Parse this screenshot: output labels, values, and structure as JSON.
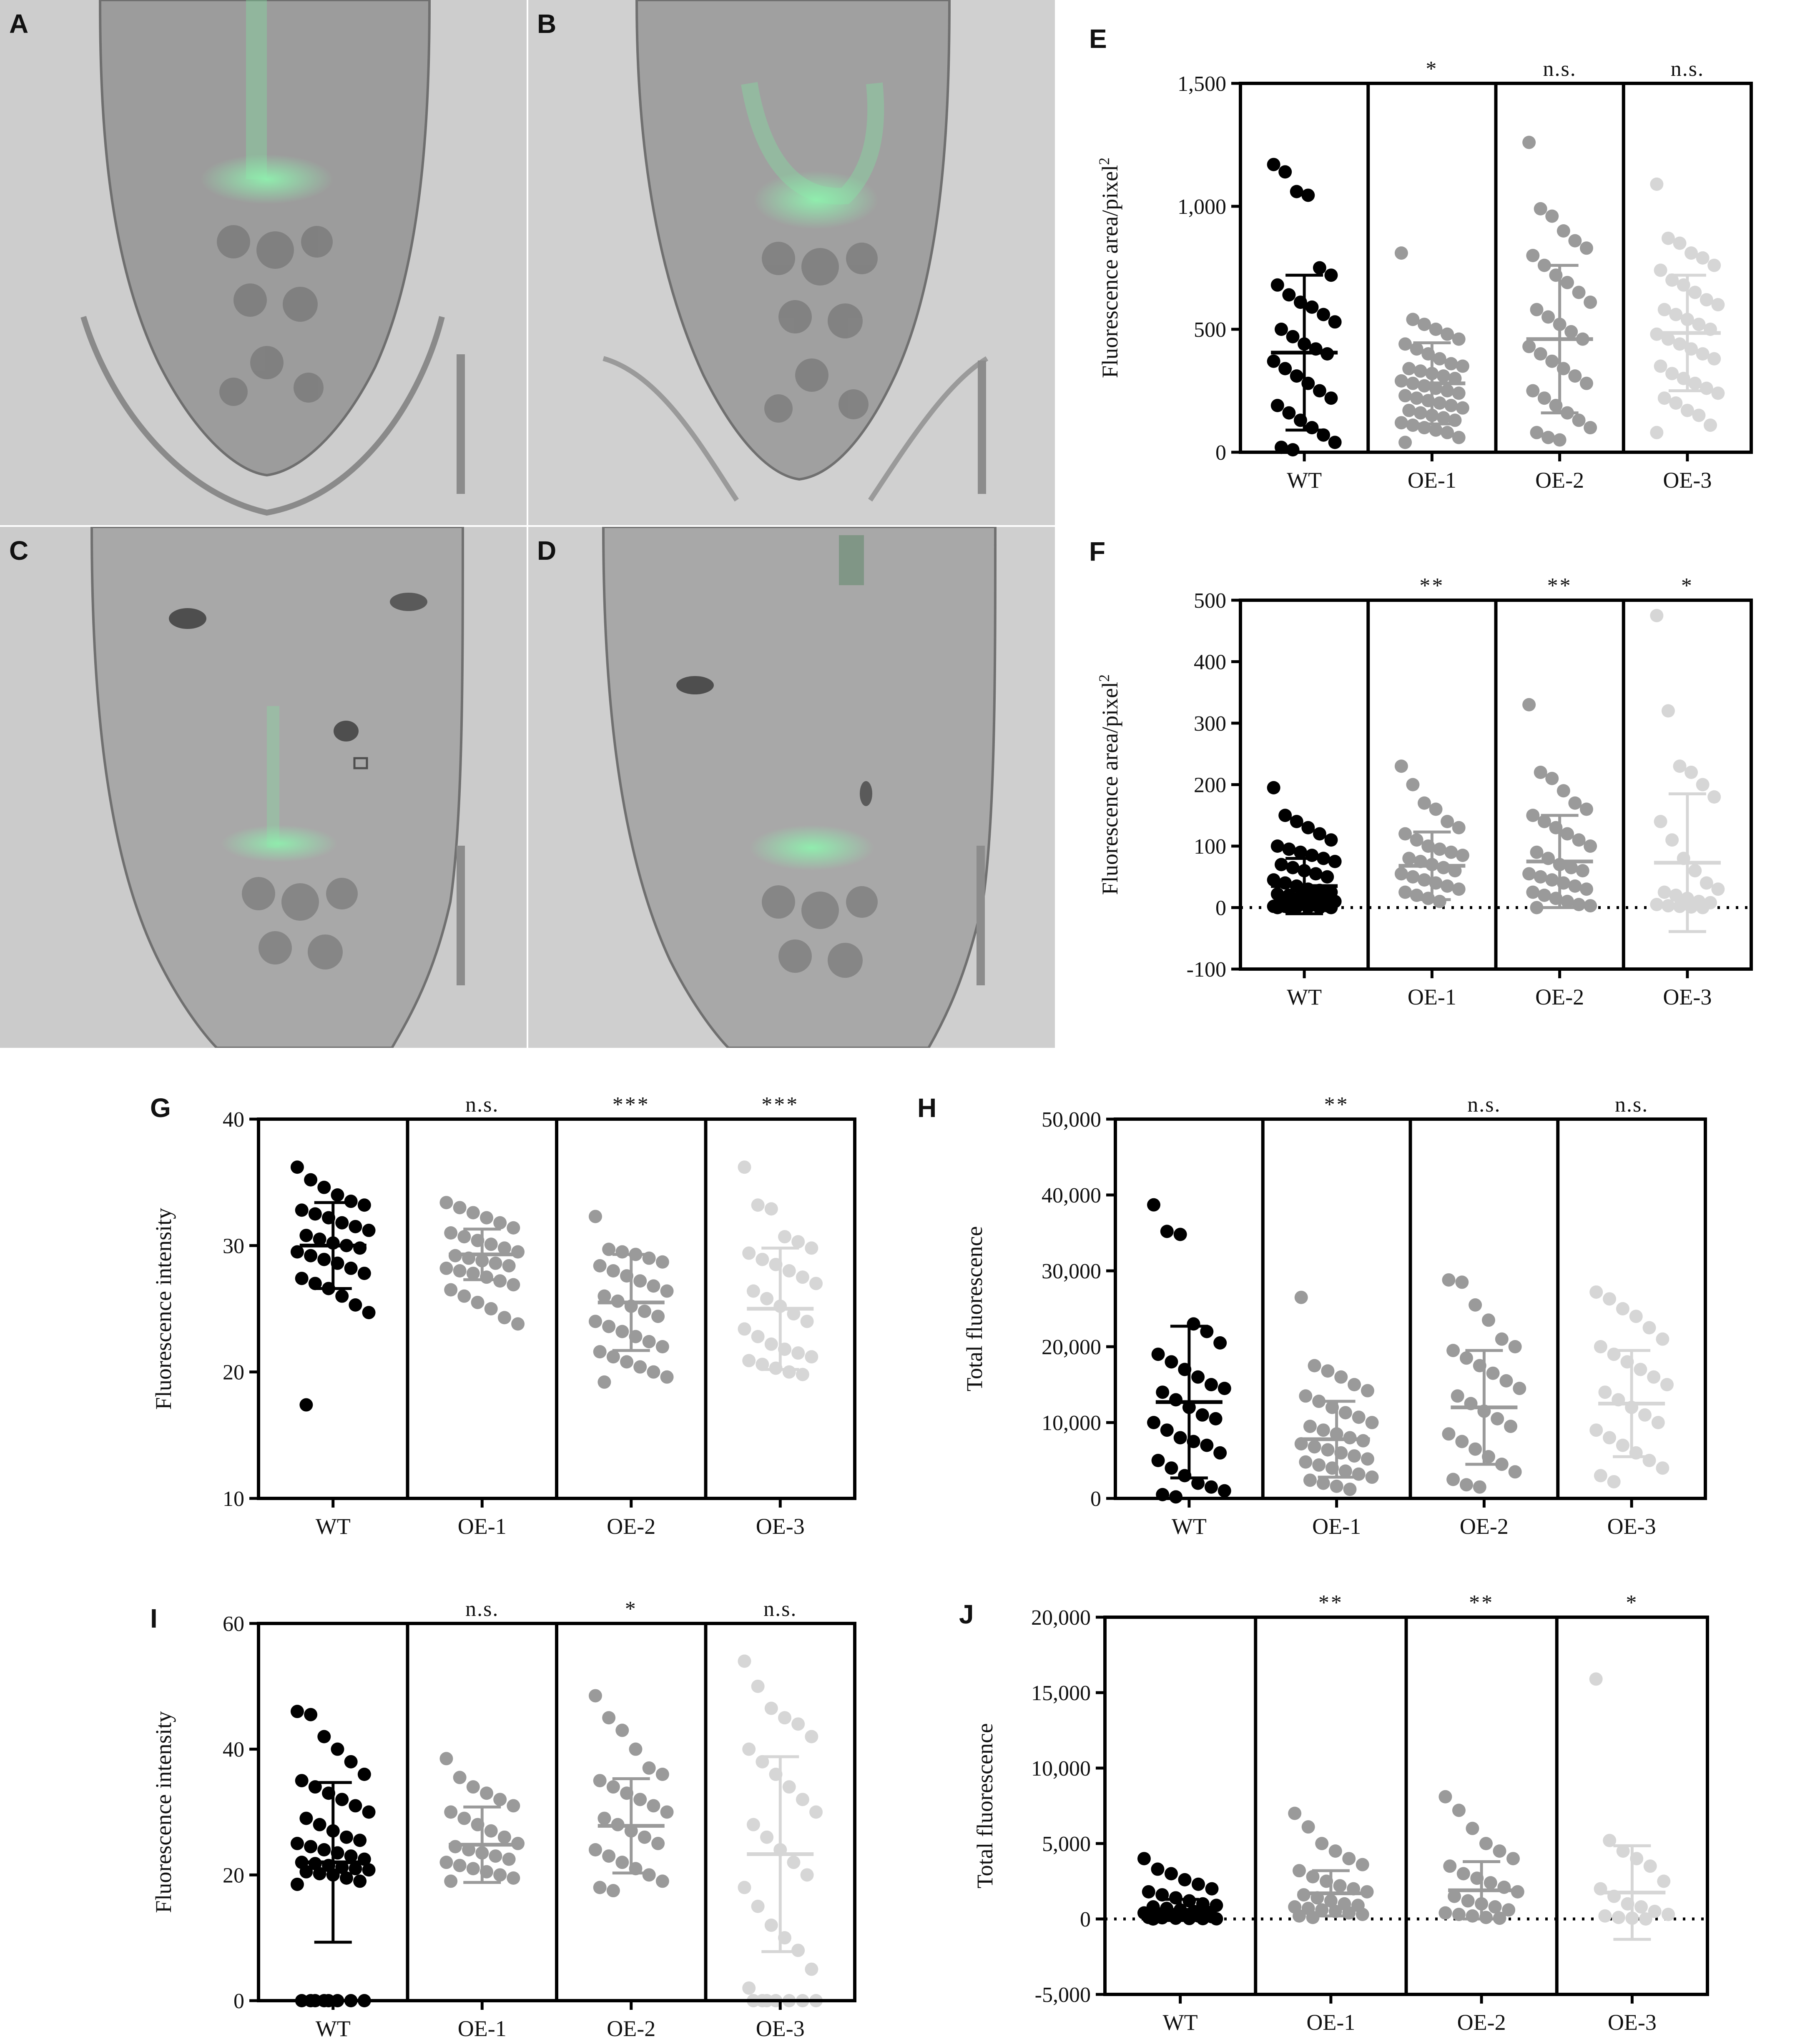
{
  "panels": {
    "A": {
      "label": "A"
    },
    "B": {
      "label": "B"
    },
    "C": {
      "label": "C"
    },
    "D": {
      "label": "D"
    }
  },
  "colors": {
    "WT": "#000000",
    "OE-1": "#9a9a9a",
    "OE-2": "#9a9a9a",
    "OE-3": "#d6d6d6",
    "gfp": "#7de8a0"
  },
  "chart_data": [
    {
      "id": "E",
      "panel_label": "E",
      "type": "scatter",
      "categories": [
        "WT",
        "OE-1",
        "OE-2",
        "OE-3"
      ],
      "ylabel": "Fluorescence area/pixel",
      "ylabel_sup": "2",
      "ylim": [
        0,
        1500
      ],
      "yticks": [
        0,
        500,
        1000,
        1500
      ],
      "ytick_labels": [
        "0",
        "500",
        "1,000",
        "1,500"
      ],
      "zero_line": false,
      "significance": [
        "",
        "*",
        "n.s.",
        "n.s."
      ],
      "series": [
        {
          "name": "WT",
          "mean": 405,
          "sd": 315,
          "values": [
            1170,
            1140,
            1060,
            1045,
            750,
            720,
            680,
            640,
            610,
            590,
            560,
            530,
            500,
            470,
            440,
            420,
            400,
            370,
            340,
            310,
            280,
            250,
            220,
            190,
            160,
            130,
            100,
            70,
            40,
            20,
            10
          ]
        },
        {
          "name": "OE-1",
          "mean": 280,
          "sd": 165,
          "values": [
            810,
            540,
            520,
            500,
            480,
            460,
            440,
            420,
            400,
            380,
            360,
            350,
            340,
            330,
            320,
            310,
            300,
            290,
            280,
            270,
            260,
            250,
            240,
            230,
            220,
            210,
            200,
            190,
            180,
            170,
            160,
            150,
            140,
            130,
            120,
            110,
            100,
            90,
            80,
            60,
            40
          ]
        },
        {
          "name": "OE-2",
          "mean": 460,
          "sd": 300,
          "values": [
            1260,
            990,
            960,
            900,
            860,
            830,
            800,
            760,
            720,
            690,
            650,
            610,
            580,
            550,
            520,
            490,
            460,
            430,
            400,
            370,
            340,
            310,
            280,
            250,
            220,
            190,
            160,
            130,
            100,
            80,
            60,
            50
          ]
        },
        {
          "name": "OE-3",
          "mean": 485,
          "sd": 235,
          "values": [
            1090,
            870,
            850,
            810,
            790,
            760,
            740,
            700,
            680,
            650,
            620,
            600,
            580,
            560,
            540,
            520,
            500,
            480,
            460,
            440,
            420,
            400,
            380,
            350,
            320,
            300,
            280,
            260,
            240,
            220,
            200,
            170,
            150,
            110,
            80
          ]
        }
      ]
    },
    {
      "id": "F",
      "panel_label": "F",
      "type": "scatter",
      "categories": [
        "WT",
        "OE-1",
        "OE-2",
        "OE-3"
      ],
      "ylabel": "Fluorescence area/pixel",
      "ylabel_sup": "2",
      "ylim": [
        -100,
        500
      ],
      "yticks": [
        -100,
        0,
        100,
        200,
        300,
        400,
        500
      ],
      "ytick_labels": [
        "-100",
        "0",
        "100",
        "200",
        "300",
        "400",
        "500"
      ],
      "zero_line": true,
      "significance": [
        "",
        "**",
        "**",
        "*"
      ],
      "series": [
        {
          "name": "WT",
          "mean": 35,
          "sd": 45,
          "values": [
            195,
            150,
            140,
            130,
            120,
            110,
            100,
            95,
            90,
            85,
            80,
            75,
            70,
            65,
            60,
            55,
            50,
            45,
            40,
            35,
            30,
            28,
            25,
            22,
            20,
            18,
            15,
            12,
            10,
            8,
            6,
            5,
            4,
            3,
            2,
            2,
            1,
            1,
            0,
            0,
            0,
            0
          ]
        },
        {
          "name": "OE-1",
          "mean": 68,
          "sd": 55,
          "values": [
            230,
            200,
            170,
            160,
            140,
            130,
            120,
            110,
            100,
            95,
            90,
            85,
            80,
            75,
            70,
            65,
            60,
            55,
            50,
            45,
            40,
            35,
            30,
            25,
            20,
            15,
            10
          ]
        },
        {
          "name": "OE-2",
          "mean": 75,
          "sd": 75,
          "values": [
            330,
            220,
            210,
            190,
            170,
            160,
            150,
            140,
            130,
            120,
            110,
            100,
            90,
            80,
            70,
            65,
            60,
            55,
            50,
            45,
            40,
            35,
            30,
            25,
            20,
            15,
            10,
            5,
            3,
            0
          ]
        },
        {
          "name": "OE-3",
          "mean": 73,
          "sd": 112,
          "values": [
            475,
            320,
            230,
            220,
            200,
            180,
            140,
            110,
            80,
            60,
            40,
            30,
            25,
            20,
            15,
            10,
            8,
            5,
            3,
            2,
            1,
            0
          ]
        }
      ]
    },
    {
      "id": "G",
      "panel_label": "G",
      "type": "scatter",
      "categories": [
        "WT",
        "OE-1",
        "OE-2",
        "OE-3"
      ],
      "ylabel": "Fluorescence intensity",
      "ylim": [
        10,
        40
      ],
      "yticks": [
        10,
        20,
        30,
        40
      ],
      "ytick_labels": [
        "10",
        "20",
        "30",
        "40"
      ],
      "zero_line": false,
      "significance": [
        "",
        "n.s.",
        "***",
        "***"
      ],
      "series": [
        {
          "name": "WT",
          "mean": 30,
          "sd": 3.4,
          "values": [
            36.2,
            35.2,
            34.6,
            34.0,
            33.5,
            33.2,
            32.8,
            32.5,
            32.2,
            31.8,
            31.5,
            31.2,
            30.8,
            30.5,
            30.2,
            30.0,
            29.8,
            29.5,
            29.2,
            28.9,
            28.6,
            28.2,
            27.8,
            27.4,
            27.0,
            26.6,
            26.0,
            25.3,
            24.7,
            17.4
          ]
        },
        {
          "name": "OE-1",
          "mean": 29.3,
          "sd": 2.0,
          "values": [
            33.4,
            33.0,
            32.6,
            32.2,
            31.8,
            31.4,
            31.0,
            30.7,
            30.4,
            30.1,
            29.8,
            29.5,
            29.2,
            29.0,
            28.8,
            28.6,
            28.4,
            28.2,
            28.0,
            27.8,
            27.5,
            27.2,
            26.9,
            26.5,
            26.0,
            25.5,
            25.0,
            24.3,
            23.8
          ]
        },
        {
          "name": "OE-2",
          "mean": 25.5,
          "sd": 3.8,
          "values": [
            32.3,
            29.7,
            29.5,
            29.3,
            29.0,
            28.7,
            28.4,
            28.0,
            27.6,
            27.2,
            26.8,
            26.4,
            26.0,
            25.6,
            25.2,
            24.8,
            24.4,
            24.0,
            23.6,
            23.2,
            22.8,
            22.4,
            22.0,
            21.6,
            21.2,
            20.8,
            20.4,
            20.0,
            19.6,
            19.2
          ]
        },
        {
          "name": "OE-3",
          "mean": 25.0,
          "sd": 4.8,
          "values": [
            36.2,
            33.2,
            32.9,
            30.7,
            30.3,
            29.8,
            29.4,
            28.9,
            28.5,
            28.0,
            27.5,
            27.0,
            26.4,
            25.8,
            25.2,
            24.6,
            24.0,
            23.4,
            22.8,
            22.2,
            21.8,
            21.5,
            21.2,
            20.9,
            20.6,
            20.3,
            20.0,
            19.8
          ]
        }
      ]
    },
    {
      "id": "H",
      "panel_label": "H",
      "type": "scatter",
      "categories": [
        "WT",
        "OE-1",
        "OE-2",
        "OE-3"
      ],
      "ylabel": "Total fluorescence",
      "ylim": [
        0,
        50000
      ],
      "yticks": [
        0,
        10000,
        20000,
        30000,
        40000,
        50000
      ],
      "ytick_labels": [
        "0",
        "10,000",
        "20,000",
        "30,000",
        "40,000",
        "50,000"
      ],
      "zero_line": false,
      "significance": [
        "",
        "**",
        "n.s.",
        "n.s."
      ],
      "series": [
        {
          "name": "WT",
          "mean": 12700,
          "sd": 10000,
          "values": [
            38700,
            35200,
            34800,
            23000,
            22000,
            20500,
            19000,
            18000,
            17000,
            16000,
            15000,
            14500,
            14000,
            13000,
            12000,
            11000,
            10500,
            10000,
            9000,
            8000,
            7500,
            7000,
            6000,
            5000,
            4000,
            3000,
            2000,
            1500,
            1000,
            500,
            200
          ]
        },
        {
          "name": "OE-1",
          "mean": 7800,
          "sd": 5000,
          "values": [
            26500,
            17500,
            16800,
            16000,
            15000,
            14200,
            13500,
            12800,
            12000,
            11300,
            10700,
            10000,
            9500,
            9000,
            8500,
            8000,
            7600,
            7200,
            6800,
            6400,
            6000,
            5600,
            5200,
            4800,
            4400,
            4000,
            3600,
            3200,
            2800,
            2400,
            2000,
            1600,
            1200
          ]
        },
        {
          "name": "OE-2",
          "mean": 12000,
          "sd": 7500,
          "values": [
            28800,
            28500,
            25500,
            23500,
            21000,
            20000,
            19500,
            18500,
            17500,
            16500,
            15500,
            14500,
            13500,
            12500,
            11500,
            10500,
            9500,
            8500,
            7500,
            6500,
            5500,
            4500,
            3500,
            2500,
            1800,
            1500
          ]
        },
        {
          "name": "OE-3",
          "mean": 12500,
          "sd": 7000,
          "values": [
            27200,
            26300,
            25000,
            24000,
            22500,
            21000,
            20000,
            19000,
            18000,
            17000,
            16000,
            15000,
            14000,
            13000,
            12000,
            11000,
            10000,
            9000,
            8000,
            7000,
            6000,
            5000,
            4000,
            3000,
            2200
          ]
        }
      ]
    },
    {
      "id": "I",
      "panel_label": "I",
      "type": "scatter",
      "categories": [
        "WT",
        "OE-1",
        "OE-2",
        "OE-3"
      ],
      "ylabel": "Fluorescence intensity",
      "ylim": [
        0,
        60
      ],
      "yticks": [
        0,
        20,
        40,
        60
      ],
      "ytick_labels": [
        "0",
        "20",
        "40",
        "60"
      ],
      "zero_line": false,
      "significance": [
        "",
        "n.s.",
        "*",
        "n.s."
      ],
      "series": [
        {
          "name": "WT",
          "mean": 22,
          "sd": 12.7,
          "values": [
            46,
            45.5,
            42,
            40,
            38,
            36,
            35,
            34,
            33,
            32,
            31,
            30,
            29,
            28,
            27,
            26,
            25.5,
            25,
            24.5,
            24,
            23.5,
            23,
            22.5,
            22,
            21.8,
            21.5,
            21.2,
            21,
            20.8,
            20.5,
            20.2,
            20,
            19.5,
            19,
            18.5,
            0,
            0,
            0,
            0,
            0,
            0,
            0,
            0
          ]
        },
        {
          "name": "OE-1",
          "mean": 24.8,
          "sd": 6.0,
          "values": [
            38.5,
            35.5,
            34,
            33,
            32,
            31,
            30,
            29,
            28,
            27,
            26,
            25,
            24.5,
            24,
            23.5,
            23,
            22.5,
            22,
            21.5,
            21,
            20.5,
            20,
            19.5,
            19
          ]
        },
        {
          "name": "OE-2",
          "mean": 27.8,
          "sd": 7.5,
          "values": [
            48.5,
            45,
            43,
            40,
            37,
            36,
            35,
            34,
            33,
            32,
            31,
            30,
            29,
            28,
            27,
            26,
            25,
            24,
            23,
            22,
            21,
            20,
            19,
            18,
            17.5
          ]
        },
        {
          "name": "OE-3",
          "mean": 23.3,
          "sd": 15.5,
          "values": [
            54,
            50,
            46.5,
            45,
            44,
            42,
            40,
            38,
            36,
            34,
            32,
            30,
            28,
            26,
            24,
            22,
            20,
            18,
            15,
            12,
            10,
            8,
            5,
            2,
            0,
            0,
            0,
            0,
            0,
            0,
            0
          ]
        }
      ]
    },
    {
      "id": "J",
      "panel_label": "J",
      "type": "scatter",
      "categories": [
        "WT",
        "OE-1",
        "OE-2",
        "OE-3"
      ],
      "ylabel": "Total fluorescence",
      "ylim": [
        -5000,
        20000
      ],
      "yticks": [
        -5000,
        0,
        5000,
        10000,
        15000,
        20000
      ],
      "ytick_labels": [
        "-5,000",
        "0",
        "5,000",
        "10,000",
        "15,000",
        "20,000"
      ],
      "zero_line": true,
      "significance": [
        "",
        "**",
        "**",
        "*"
      ],
      "series": [
        {
          "name": "WT",
          "mean": 600,
          "sd": 700,
          "values": [
            4000,
            3300,
            3000,
            2600,
            2300,
            2000,
            1800,
            1600,
            1400,
            1200,
            1000,
            900,
            800,
            700,
            600,
            500,
            450,
            400,
            350,
            300,
            250,
            200,
            150,
            100,
            80,
            50,
            30,
            20,
            10,
            0
          ]
        },
        {
          "name": "OE-1",
          "mean": 1700,
          "sd": 1500,
          "values": [
            7000,
            6100,
            5000,
            4500,
            4000,
            3600,
            3200,
            2800,
            2500,
            2200,
            2000,
            1800,
            1600,
            1400,
            1200,
            1000,
            900,
            800,
            700,
            600,
            500,
            400,
            300,
            200,
            100
          ]
        },
        {
          "name": "OE-2",
          "mean": 1900,
          "sd": 1900,
          "values": [
            8100,
            7200,
            6000,
            5000,
            4500,
            4000,
            3500,
            3000,
            2700,
            2400,
            2100,
            1800,
            1500,
            1200,
            1000,
            800,
            600,
            400,
            300,
            200,
            100,
            50
          ]
        },
        {
          "name": "OE-3",
          "mean": 1750,
          "sd": 3100,
          "values": [
            15900,
            5200,
            4500,
            4000,
            3500,
            2500,
            2000,
            1500,
            1000,
            800,
            500,
            300,
            200,
            100,
            50,
            0
          ]
        }
      ]
    }
  ]
}
